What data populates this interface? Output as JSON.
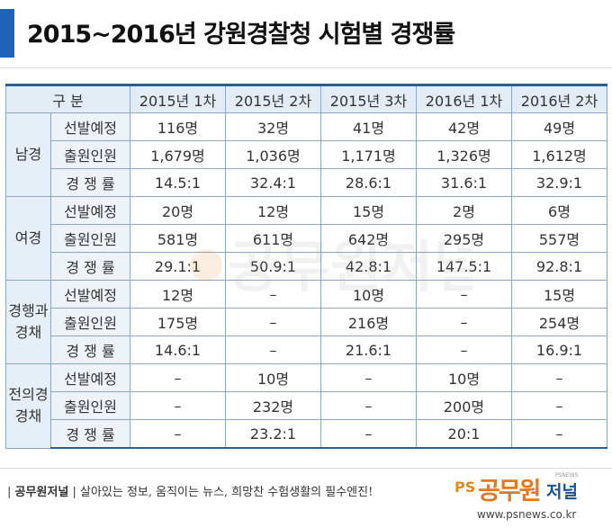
{
  "title": "2015~2016년 강원경찰청 시험별 경쟁률",
  "colors": {
    "accent": "#1e63b4",
    "header_bg": "#e3ecf5",
    "group_bg": "#e6eef7",
    "border": "#8da6c2",
    "logo_orange": "#e6781a",
    "logo_blue": "#1d4f8c"
  },
  "table": {
    "corner": "구 분",
    "columns": [
      "2015년 1차",
      "2015년 2차",
      "2015년 3차",
      "2016년 1차",
      "2016년 2차"
    ],
    "groups": [
      {
        "name": "남경",
        "rows": [
          {
            "label": "선발예정",
            "values": [
              "116명",
              "32명",
              "41명",
              "42명",
              "49명"
            ]
          },
          {
            "label": "출원인원",
            "values": [
              "1,679명",
              "1,036명",
              "1,171명",
              "1,326명",
              "1,612명"
            ]
          },
          {
            "label": "경 쟁 률",
            "values": [
              "14.5:1",
              "32.4:1",
              "28.6:1",
              "31.6:1",
              "32.9:1"
            ]
          }
        ]
      },
      {
        "name": "여경",
        "rows": [
          {
            "label": "선발예정",
            "values": [
              "20명",
              "12명",
              "15명",
              "2명",
              "6명"
            ]
          },
          {
            "label": "출원인원",
            "values": [
              "581명",
              "611명",
              "642명",
              "295명",
              "557명"
            ]
          },
          {
            "label": "경 쟁 률",
            "values": [
              "29.1:1",
              "50.9:1",
              "42.8:1",
              "147.5:1",
              "92.8:1"
            ]
          }
        ]
      },
      {
        "name": "경행과 경채",
        "rows": [
          {
            "label": "선발예정",
            "values": [
              "12명",
              "–",
              "10명",
              "–",
              "15명"
            ]
          },
          {
            "label": "출원인원",
            "values": [
              "175명",
              "–",
              "216명",
              "–",
              "254명"
            ]
          },
          {
            "label": "경 쟁 률",
            "values": [
              "14.6:1",
              "–",
              "21.6:1",
              "–",
              "16.9:1"
            ]
          }
        ]
      },
      {
        "name": "전의경 경채",
        "rows": [
          {
            "label": "선발예정",
            "values": [
              "–",
              "10명",
              "–",
              "10명",
              "–"
            ]
          },
          {
            "label": "출원인원",
            "values": [
              "–",
              "232명",
              "–",
              "200명",
              "–"
            ]
          },
          {
            "label": "경 쟁 률",
            "values": [
              "–",
              "23.2:1",
              "–",
              "20:1",
              "–"
            ]
          }
        ]
      }
    ]
  },
  "footer": {
    "brand": "공무원저널",
    "slogan": "살아있는 정보, 움직이는 뉴스, 희망찬 수험생활의 필수엔진!",
    "logo_ps": "PS",
    "logo_main": "공무원",
    "logo_sub": "저널",
    "logo_tag": "PSNEWS",
    "url": "www.psnews.co.kr"
  }
}
